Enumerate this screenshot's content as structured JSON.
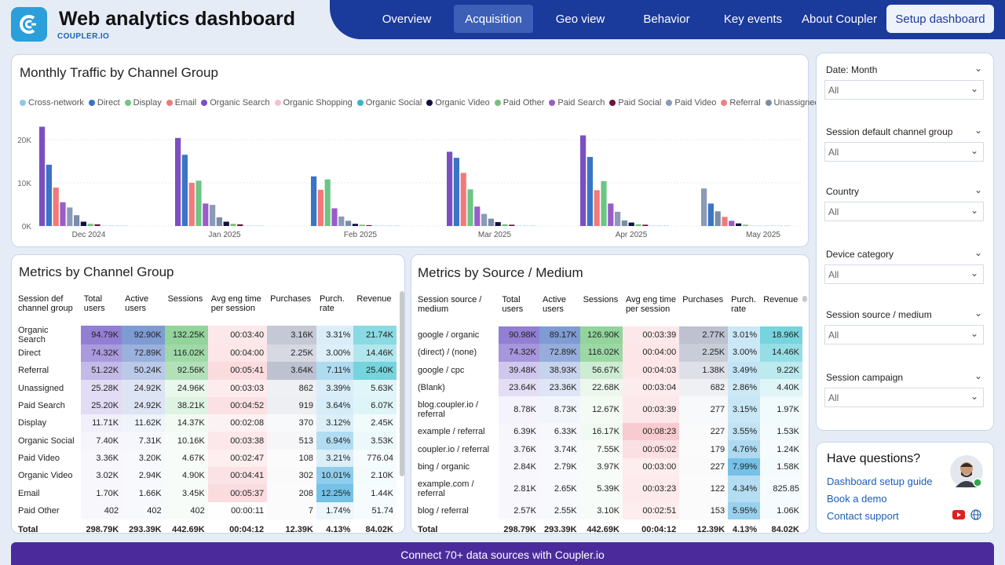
{
  "header": {
    "title": "Web analytics dashboard",
    "brand": "COUPLER.IO",
    "setup": "Setup dashboard",
    "nav": [
      {
        "label": "Overview"
      },
      {
        "label": "Acquisition"
      },
      {
        "label": "Geo view"
      },
      {
        "label": "Behavior"
      },
      {
        "label": "Key events"
      },
      {
        "label": "About Coupler"
      }
    ]
  },
  "chart": {
    "title": "Monthly Traffic by Channel Group"
  },
  "chart_data": {
    "type": "bar",
    "title": "Monthly Traffic by Channel Group",
    "categories": [
      "Dec 2024",
      "Jan 2025",
      "Feb 2025",
      "Mar 2025",
      "Apr 2025",
      "May 2025"
    ],
    "yticks": [
      "0K",
      "10K",
      "20K"
    ],
    "ylim": [
      0,
      25000
    ],
    "series": [
      {
        "name": "Cross-network",
        "color": "#8fc8e8",
        "values": [
          0,
          0,
          0,
          0,
          0,
          0
        ]
      },
      {
        "name": "Direct",
        "color": "#3a74c4",
        "values": [
          14200,
          16500,
          11500,
          15800,
          16000,
          0
        ]
      },
      {
        "name": "Display",
        "color": "#6cc585",
        "values": [
          0,
          10500,
          10800,
          8500,
          10400,
          0
        ]
      },
      {
        "name": "Email",
        "color": "#f27979",
        "values": [
          8900,
          10000,
          8400,
          12300,
          8300,
          0
        ]
      },
      {
        "name": "Organic Search",
        "color": "#7b4fc0",
        "values": [
          23000,
          20400,
          0,
          17200,
          21000,
          0
        ]
      },
      {
        "name": "Organic Shopping",
        "color": "#f5c2c8",
        "values": [
          0,
          0,
          0,
          0,
          0,
          0
        ]
      },
      {
        "name": "Organic Social",
        "color": "#3ab4c8",
        "values": [
          0,
          0,
          0,
          0,
          0,
          0
        ]
      },
      {
        "name": "Organic Video",
        "color": "#0f1240",
        "values": [
          1000,
          1000,
          500,
          900,
          800,
          0
        ]
      },
      {
        "name": "Paid Other",
        "color": "#78c07c",
        "values": [
          500,
          500,
          300,
          400,
          400,
          0
        ]
      },
      {
        "name": "Paid Search",
        "color": "#9a5cc8",
        "values": [
          5500,
          5200,
          4100,
          4500,
          5200,
          0
        ]
      },
      {
        "name": "Paid Social",
        "color": "#6b1540",
        "values": [
          400,
          400,
          200,
          300,
          300,
          0
        ]
      },
      {
        "name": "Paid Video",
        "color": "#8a9ab8",
        "values": [
          4300,
          4900,
          2200,
          2800,
          3300,
          8700
        ]
      },
      {
        "name": "Referral",
        "color": "#f08080",
        "values": [
          0,
          0,
          0,
          0,
          0,
          0
        ]
      },
      {
        "name": "Unassigned",
        "color": "#7a8ca8",
        "values": [
          2500,
          2000,
          1200,
          1700,
          1300,
          3400
        ]
      }
    ],
    "may_extra": [
      {
        "name": "Direct",
        "value": 5200
      },
      {
        "name": "Email",
        "value": 2100
      },
      {
        "name": "Paid Search",
        "value": 1200
      },
      {
        "name": "Organic Video",
        "value": 600
      },
      {
        "name": "Paid Other",
        "value": 300
      }
    ]
  },
  "channel_table": {
    "title": "Metrics by Channel Group",
    "headers": [
      "Session def channel group",
      "Total users",
      "Active users",
      "Sessions",
      "Avg eng time per session",
      "Purchases",
      "Purch. rate",
      "Revenue"
    ],
    "rows": [
      [
        "Organic Search",
        "94.79K",
        "92.90K",
        "132.25K",
        "00:03:40",
        "3.16K",
        "3.31%",
        "21.74K"
      ],
      [
        "Direct",
        "74.32K",
        "72.89K",
        "116.02K",
        "00:04:00",
        "2.25K",
        "3.00%",
        "14.46K"
      ],
      [
        "Referral",
        "51.22K",
        "50.24K",
        "92.56K",
        "00:05:41",
        "3.64K",
        "7.11%",
        "25.40K"
      ],
      [
        "Unassigned",
        "25.28K",
        "24.92K",
        "24.96K",
        "00:03:03",
        "862",
        "3.39%",
        "5.63K"
      ],
      [
        "Paid Search",
        "25.20K",
        "24.92K",
        "38.21K",
        "00:04:52",
        "919",
        "3.64%",
        "6.07K"
      ],
      [
        "Display",
        "11.71K",
        "11.62K",
        "14.37K",
        "00:02:08",
        "370",
        "3.12%",
        "2.45K"
      ],
      [
        "Organic Social",
        "7.40K",
        "7.31K",
        "10.16K",
        "00:03:38",
        "513",
        "6.94%",
        "3.53K"
      ],
      [
        "Paid Video",
        "3.36K",
        "3.20K",
        "4.67K",
        "00:02:47",
        "108",
        "3.21%",
        "776.04"
      ],
      [
        "Organic Video",
        "3.02K",
        "2.94K",
        "4.90K",
        "00:04:41",
        "302",
        "10.01%",
        "2.10K"
      ],
      [
        "Email",
        "1.70K",
        "1.66K",
        "3.45K",
        "00:05:37",
        "208",
        "12.25%",
        "1.44K"
      ],
      [
        "Paid Other",
        "402",
        "402",
        "402",
        "00:00:11",
        "7",
        "1.74%",
        "51.74"
      ]
    ],
    "total": [
      "Total",
      "298.79K",
      "293.39K",
      "442.69K",
      "00:04:12",
      "12.39K",
      "4.13%",
      "84.02K"
    ]
  },
  "source_table": {
    "title": "Metrics by Source / Medium",
    "headers": [
      "Session source / medium",
      "Total users",
      "Active users",
      "Sessions",
      "Avg eng time per session",
      "Purchases",
      "Purch. rate",
      "Revenue"
    ],
    "rows": [
      [
        "google / organic",
        "90.98K",
        "89.17K",
        "126.90K",
        "00:03:39",
        "2.77K",
        "3.01%",
        "18.96K"
      ],
      [
        "(direct) / (none)",
        "74.32K",
        "72.89K",
        "116.02K",
        "00:04:00",
        "2.25K",
        "3.00%",
        "14.46K"
      ],
      [
        "google / cpc",
        "39.48K",
        "38.93K",
        "56.67K",
        "00:04:03",
        "1.38K",
        "3.49%",
        "9.22K"
      ],
      [
        "(Blank)",
        "23.64K",
        "23.36K",
        "22.68K",
        "00:03:04",
        "682",
        "2.86%",
        "4.40K"
      ],
      [
        "blog.coupler.io / referral",
        "8.78K",
        "8.73K",
        "12.67K",
        "00:03:39",
        "277",
        "3.15%",
        "1.97K"
      ],
      [
        "example / referral",
        "6.39K",
        "6.33K",
        "16.17K",
        "00:08:23",
        "227",
        "3.55%",
        "1.53K"
      ],
      [
        "coupler.io / referral",
        "3.76K",
        "3.74K",
        "7.55K",
        "00:05:02",
        "179",
        "4.76%",
        "1.24K"
      ],
      [
        "bing / organic",
        "2.84K",
        "2.79K",
        "3.97K",
        "00:03:00",
        "227",
        "7.99%",
        "1.58K"
      ],
      [
        "example.com / referral",
        "2.81K",
        "2.65K",
        "5.39K",
        "00:03:23",
        "122",
        "4.34%",
        "825.85"
      ],
      [
        "blog / referral",
        "2.57K",
        "2.55K",
        "3.10K",
        "00:02:51",
        "153",
        "5.95%",
        "1.06K"
      ]
    ],
    "total": [
      "Total",
      "298.79K",
      "293.39K",
      "442.69K",
      "00:04:12",
      "12.39K",
      "4.13%",
      "84.02K"
    ]
  },
  "filters": [
    {
      "label": "Date: Month",
      "value": "All"
    },
    {
      "label": "Session default channel group",
      "value": "All"
    },
    {
      "label": "Country",
      "value": "All"
    },
    {
      "label": "Device category",
      "value": "All"
    },
    {
      "label": "Session source / medium",
      "value": "All"
    },
    {
      "label": "Session campaign",
      "value": "All"
    }
  ],
  "help": {
    "title": "Have questions?",
    "links": [
      "Dashboard setup guide",
      "Book a demo",
      "Contact support"
    ]
  },
  "footer": {
    "text": "Connect 70+ data sources with Coupler.io"
  }
}
